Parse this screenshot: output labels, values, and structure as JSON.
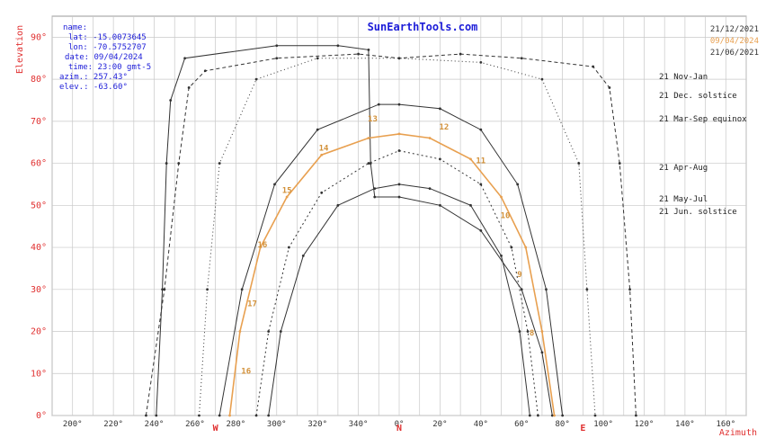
{
  "chart_data": {
    "type": "line",
    "title": "SunEarthTools.com",
    "ylabel": "Elevation",
    "xlabel": "Azimuth",
    "x_ticks": [
      "200°",
      "220°",
      "240°",
      "260°",
      "280°",
      "300°",
      "320°",
      "340°",
      "0°",
      "20°",
      "40°",
      "60°",
      "80°",
      "100°",
      "120°",
      "140°",
      "160°"
    ],
    "y_ticks": [
      "0°",
      "10°",
      "20°",
      "30°",
      "40°",
      "50°",
      "60°",
      "70°",
      "80°",
      "90°"
    ],
    "cardinals": [
      "W",
      "N",
      "E"
    ],
    "info": {
      "name": "name:",
      "lat": "lat: -15.0073645",
      "lon": "lon: -70.5752707",
      "date": "date: 09/04/2024",
      "time": "time: 23:00 gmt-5",
      "azimuth": "azim.: 257.43°",
      "elevation": "elev.: -63.60°"
    },
    "legend": [
      {
        "label": "21/12/2021",
        "color": "#333333"
      },
      {
        "label": "09/04/2024",
        "color": "#e8a050"
      },
      {
        "label": "21/06/2021",
        "color": "#333333"
      }
    ],
    "curve_labels": [
      "21 Nov-Jan",
      "21 Dec. solstice",
      "21 Mar-Sep equinox",
      "21 Apr-Aug",
      "21 May-Jul",
      "21 Jun. solstice"
    ],
    "series": [
      {
        "name": "21 Dec. solstice",
        "color": "#333333",
        "dash": "4 3",
        "points": [
          [
            236,
            0
          ],
          [
            245,
            30
          ],
          [
            252,
            60
          ],
          [
            257,
            78
          ],
          [
            265,
            82
          ],
          [
            300,
            85
          ],
          [
            340,
            86
          ],
          [
            0,
            85
          ],
          [
            30,
            86
          ],
          [
            60,
            85
          ],
          [
            95,
            83
          ],
          [
            103,
            78
          ],
          [
            108,
            60
          ],
          [
            113,
            30
          ],
          [
            116,
            0
          ]
        ]
      },
      {
        "name": "21 Nov-Jan",
        "color": "#333333",
        "dash": "",
        "points": [
          [
            241,
            0
          ],
          [
            244,
            30
          ],
          [
            246,
            60
          ],
          [
            248,
            75
          ],
          [
            255,
            85
          ],
          [
            300,
            88
          ],
          [
            330,
            88
          ],
          [
            345,
            87
          ],
          [
            346,
            60
          ],
          [
            348,
            52
          ],
          [
            0,
            52
          ],
          [
            20,
            50
          ],
          [
            40,
            44
          ],
          [
            60,
            30
          ],
          [
            70,
            15
          ],
          [
            75,
            0
          ]
        ]
      },
      {
        "name": "21 Mar-Sep equinox",
        "color": "#333333",
        "dash": "1 3",
        "points": [
          [
            262,
            0
          ],
          [
            266,
            30
          ],
          [
            272,
            60
          ],
          [
            290,
            80
          ],
          [
            320,
            85
          ],
          [
            0,
            85
          ],
          [
            40,
            84
          ],
          [
            70,
            80
          ],
          [
            88,
            60
          ],
          [
            92,
            30
          ],
          [
            96,
            0
          ]
        ]
      },
      {
        "name": "21 Apr-Aug",
        "color": "#333333",
        "dash": "",
        "points": [
          [
            272,
            0
          ],
          [
            283,
            30
          ],
          [
            299,
            55
          ],
          [
            320,
            68
          ],
          [
            350,
            74
          ],
          [
            0,
            74
          ],
          [
            20,
            73
          ],
          [
            40,
            68
          ],
          [
            58,
            55
          ],
          [
            72,
            30
          ],
          [
            80,
            0
          ]
        ]
      },
      {
        "name": "21 May-Jul",
        "color": "#333333",
        "dash": "2 3",
        "points": [
          [
            290,
            0
          ],
          [
            296,
            20
          ],
          [
            306,
            40
          ],
          [
            322,
            53
          ],
          [
            345,
            60
          ],
          [
            0,
            63
          ],
          [
            20,
            61
          ],
          [
            40,
            55
          ],
          [
            55,
            40
          ],
          [
            63,
            20
          ],
          [
            68,
            0
          ]
        ]
      },
      {
        "name": "21 Jun. solstice",
        "color": "#333333",
        "dash": "",
        "points": [
          [
            296,
            0
          ],
          [
            302,
            20
          ],
          [
            313,
            38
          ],
          [
            330,
            50
          ],
          [
            348,
            54
          ],
          [
            0,
            55
          ],
          [
            15,
            54
          ],
          [
            35,
            50
          ],
          [
            50,
            38
          ],
          [
            59,
            20
          ],
          [
            64,
            0
          ]
        ]
      },
      {
        "name": "09/04/2024",
        "color": "#e8a050",
        "dash": "",
        "points": [
          [
            277,
            0
          ],
          [
            282,
            20
          ],
          [
            292,
            40
          ],
          [
            305,
            52
          ],
          [
            322,
            62
          ],
          [
            345,
            66
          ],
          [
            0,
            67
          ],
          [
            15,
            66
          ],
          [
            35,
            61
          ],
          [
            50,
            52
          ],
          [
            62,
            40
          ],
          [
            70,
            20
          ],
          [
            76,
            0
          ]
        ]
      }
    ],
    "hour_labels": [
      {
        "t": "16",
        "az": 285,
        "el": 10
      },
      {
        "t": "17",
        "az": 288,
        "el": 26
      },
      {
        "t": "16",
        "az": 293,
        "el": 40
      },
      {
        "t": "15",
        "az": 305,
        "el": 53
      },
      {
        "t": "14",
        "az": 323,
        "el": 63
      },
      {
        "t": "13",
        "az": 347,
        "el": 70
      },
      {
        "t": "12",
        "az": 22,
        "el": 68
      },
      {
        "t": "11",
        "az": 40,
        "el": 60
      },
      {
        "t": "10",
        "az": 52,
        "el": 47
      },
      {
        "t": "9",
        "az": 59,
        "el": 33
      },
      {
        "t": "8",
        "az": 65,
        "el": 19
      }
    ],
    "xlim": [
      190,
      170
    ],
    "ylim": [
      0,
      95
    ],
    "grid": true
  }
}
